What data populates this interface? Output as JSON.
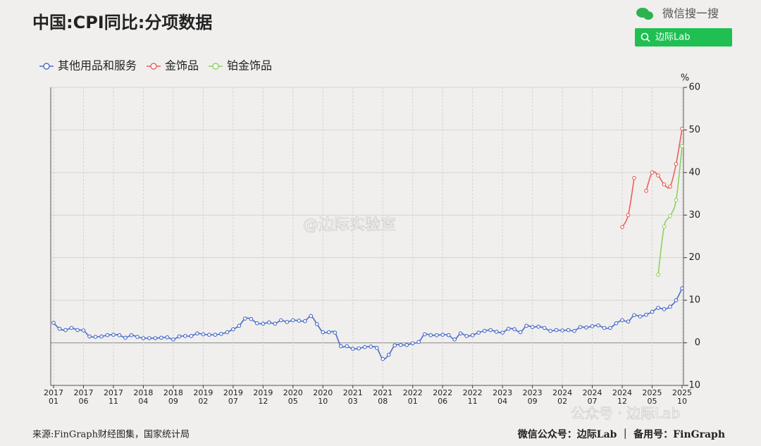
{
  "chart_data": {
    "type": "line",
    "title": "中国:CPI同比:分项数据",
    "y_unit": "%",
    "categories": [
      "2017\n01",
      null,
      null,
      null,
      null,
      "2017\n06",
      null,
      null,
      null,
      null,
      "2017\n11",
      null,
      null,
      null,
      null,
      "2018\n04",
      null,
      null,
      null,
      null,
      "2018\n09",
      null,
      null,
      null,
      null,
      "2019\n02",
      null,
      null,
      null,
      null,
      "2019\n07",
      null,
      null,
      null,
      null,
      "2019\n12",
      null,
      null,
      null,
      null,
      "2020\n05",
      null,
      null,
      null,
      null,
      "2020\n10",
      null,
      null,
      null,
      null,
      "2021\n03",
      null,
      null,
      null,
      null,
      "2021\n08",
      null,
      null,
      null,
      null,
      "2022\n01",
      null,
      null,
      null,
      null,
      "2022\n06",
      null,
      null,
      null,
      null,
      "2022\n11",
      null,
      null,
      null,
      null,
      "2023\n04",
      null,
      null,
      null,
      null,
      "2023\n09",
      null,
      null,
      null,
      null,
      "2024\n02",
      null,
      null,
      null,
      null,
      "2024\n07",
      null,
      null,
      null,
      null,
      "2024\n12",
      null,
      null,
      null,
      null,
      "2025\n05",
      null,
      null,
      null,
      null,
      "2025\n10"
    ],
    "series": [
      {
        "name": "其他用品和服务",
        "color": "#4a6bc8",
        "values": [
          4.7,
          3.3,
          3.0,
          3.5,
          3.0,
          2.9,
          1.5,
          1.4,
          1.5,
          1.8,
          1.9,
          1.8,
          1.2,
          1.8,
          1.4,
          1.1,
          1.1,
          1.1,
          1.2,
          1.3,
          0.8,
          1.5,
          1.6,
          1.6,
          2.2,
          2.0,
          1.9,
          1.9,
          2.1,
          2.5,
          3.2,
          4.0,
          5.7,
          5.6,
          4.6,
          4.5,
          4.8,
          4.5,
          5.3,
          4.9,
          5.3,
          5.2,
          5.1,
          6.3,
          4.4,
          2.5,
          2.5,
          2.4,
          -0.8,
          -0.8,
          -1.4,
          -1.3,
          -1.0,
          -0.9,
          -1.2,
          -3.8,
          -2.8,
          -0.6,
          -0.5,
          -0.5,
          -0.1,
          0.2,
          2.0,
          1.8,
          1.8,
          1.9,
          1.8,
          0.8,
          2.2,
          1.6,
          1.8,
          2.4,
          2.8,
          3.0,
          2.6,
          2.4,
          3.3,
          3.2,
          2.5,
          4.0,
          3.7,
          3.8,
          3.5,
          2.8,
          3.0,
          2.9,
          3.0,
          2.8,
          3.7,
          3.6,
          3.9,
          4.1,
          3.5,
          3.5,
          4.6,
          5.3,
          5.0,
          6.5,
          6.2,
          6.6,
          7.3,
          8.2,
          7.9,
          8.5,
          10.0,
          12.8
        ]
      },
      {
        "name": "金饰品",
        "color": "#e8605c",
        "values": [
          null,
          null,
          null,
          null,
          null,
          null,
          null,
          null,
          null,
          null,
          null,
          null,
          null,
          null,
          null,
          null,
          null,
          null,
          null,
          null,
          null,
          null,
          null,
          null,
          null,
          null,
          null,
          null,
          null,
          null,
          null,
          null,
          null,
          null,
          null,
          null,
          null,
          null,
          null,
          null,
          null,
          null,
          null,
          null,
          null,
          null,
          null,
          null,
          null,
          null,
          null,
          null,
          null,
          null,
          null,
          null,
          null,
          null,
          null,
          null,
          null,
          null,
          null,
          null,
          null,
          null,
          null,
          null,
          null,
          null,
          null,
          null,
          null,
          null,
          null,
          null,
          null,
          null,
          null,
          null,
          null,
          null,
          null,
          null,
          null,
          null,
          null,
          null,
          null,
          null,
          null,
          null,
          null,
          null,
          null,
          27.2,
          30.0,
          38.7,
          null,
          35.7,
          40.0,
          39.3,
          37.2,
          36.7,
          42.0,
          50.3
        ]
      },
      {
        "name": "铂金饰品",
        "color": "#8fd062",
        "values": [
          null,
          null,
          null,
          null,
          null,
          null,
          null,
          null,
          null,
          null,
          null,
          null,
          null,
          null,
          null,
          null,
          null,
          null,
          null,
          null,
          null,
          null,
          null,
          null,
          null,
          null,
          null,
          null,
          null,
          null,
          null,
          null,
          null,
          null,
          null,
          null,
          null,
          null,
          null,
          null,
          null,
          null,
          null,
          null,
          null,
          null,
          null,
          null,
          null,
          null,
          null,
          null,
          null,
          null,
          null,
          null,
          null,
          null,
          null,
          null,
          null,
          null,
          null,
          null,
          null,
          null,
          null,
          null,
          null,
          null,
          null,
          null,
          null,
          null,
          null,
          null,
          null,
          null,
          null,
          null,
          null,
          null,
          null,
          null,
          null,
          null,
          null,
          null,
          null,
          null,
          null,
          null,
          null,
          null,
          null,
          null,
          null,
          null,
          null,
          null,
          null,
          16.0,
          27.3,
          29.8,
          33.5,
          46.2
        ]
      }
    ],
    "ylim": [
      -10,
      60
    ],
    "yticks": [
      -10,
      0,
      10,
      20,
      30,
      40,
      50,
      60
    ],
    "grid": true,
    "legend": "top-left",
    "source": "来源:FinGraph财经图集，国家统计局"
  },
  "header": {
    "search_brand": "微信搜一搜",
    "search_query": "边际Lab"
  },
  "footer": {
    "account": "微信公众号：边际Lab ｜ 备用号：FinGraph"
  },
  "watermarks": {
    "weibo": "@边际实验室",
    "wechat": "公众号 · 边际Lab"
  }
}
